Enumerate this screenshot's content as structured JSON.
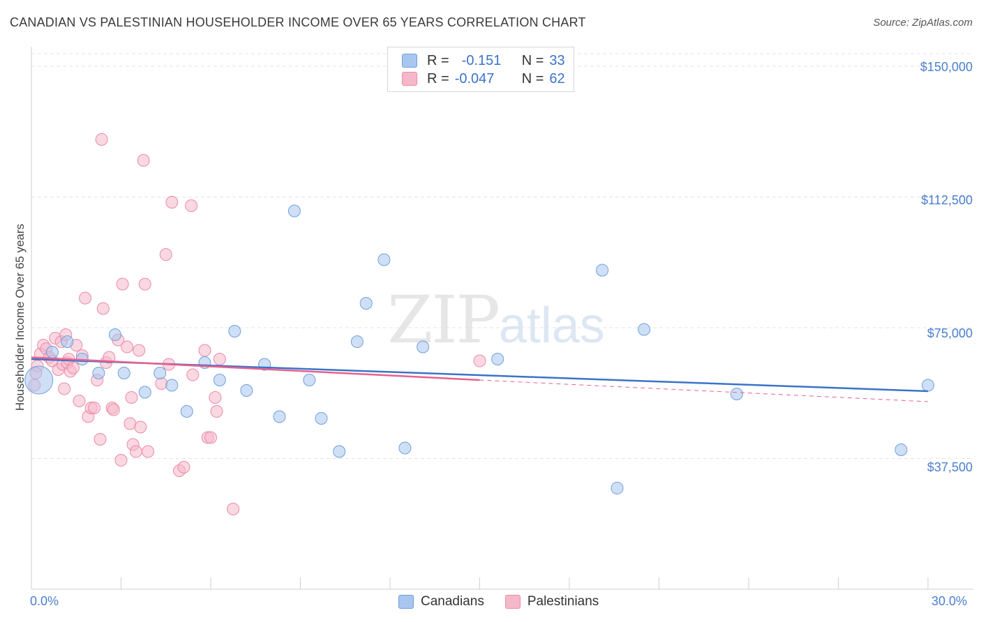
{
  "title": "CANADIAN VS PALESTINIAN HOUSEHOLDER INCOME OVER 65 YEARS CORRELATION CHART",
  "source": "Source: ZipAtlas.com",
  "watermark": {
    "zip": "ZIP",
    "atlas": "atlas"
  },
  "legend": {
    "rows": [
      {
        "r_label": "R =",
        "r_value": "-0.151",
        "n_label": "N =",
        "n_value": "33",
        "color": "#a8c6ef"
      },
      {
        "r_label": "R =",
        "r_value": "-0.047",
        "n_label": "N =",
        "n_value": "62",
        "color": "#f5b8cb"
      }
    ]
  },
  "bottom_legend": [
    "Canadians",
    "Palestinians"
  ],
  "colors": {
    "canadians_fill": "#a8c6ef",
    "canadians_stroke": "#6f9fdc",
    "canadians_line": "#3a73c8",
    "palestinians_fill": "#f5b8cb",
    "palestinians_stroke": "#ea8aa8",
    "palestinians_line": "#e8608e",
    "axis_label": "#4a7fd0",
    "grid": "#e3e3e3"
  },
  "chart_data": {
    "type": "scatter",
    "title": "CANADIAN VS PALESTINIAN HOUSEHOLDER INCOME OVER 65 YEARS CORRELATION CHART",
    "xlabel": "",
    "ylabel": "Householder Income Over 65 years",
    "xlim": [
      0,
      30
    ],
    "ylim": [
      0,
      155000
    ],
    "x_tick_labels": [
      "0.0%",
      "30.0%"
    ],
    "y_ticks": [
      37500,
      75000,
      112500,
      150000
    ],
    "y_tick_labels": [
      "$37,500",
      "$75,000",
      "$112,500",
      "$150,000"
    ],
    "grid": true,
    "legend_position": "top-center",
    "series": [
      {
        "name": "Canadians",
        "points": [
          [
            0.25,
            60000
          ],
          [
            0.7,
            68000
          ],
          [
            1.2,
            71000
          ],
          [
            1.7,
            66000
          ],
          [
            2.25,
            62000
          ],
          [
            2.8,
            73000
          ],
          [
            3.1,
            62000
          ],
          [
            3.8,
            56500
          ],
          [
            4.3,
            62000
          ],
          [
            4.7,
            58500
          ],
          [
            5.2,
            51000
          ],
          [
            5.8,
            65000
          ],
          [
            6.3,
            60000
          ],
          [
            6.8,
            74000
          ],
          [
            7.2,
            57000
          ],
          [
            7.8,
            64500
          ],
          [
            8.3,
            49500
          ],
          [
            8.8,
            108500
          ],
          [
            9.3,
            60000
          ],
          [
            9.7,
            49000
          ],
          [
            10.3,
            39500
          ],
          [
            10.9,
            71000
          ],
          [
            11.2,
            82000
          ],
          [
            11.8,
            94500
          ],
          [
            12.5,
            40500
          ],
          [
            13.1,
            69500
          ],
          [
            15.6,
            66000
          ],
          [
            19.1,
            91500
          ],
          [
            19.6,
            29000
          ],
          [
            20.5,
            74500
          ],
          [
            23.6,
            56000
          ],
          [
            29.1,
            40000
          ],
          [
            30.0,
            58500
          ]
        ],
        "trend": {
          "x": [
            0,
            30
          ],
          "y": [
            66000,
            56800
          ]
        }
      },
      {
        "name": "Palestinians",
        "points": [
          [
            0.1,
            58500
          ],
          [
            0.2,
            64000
          ],
          [
            0.3,
            67500
          ],
          [
            0.4,
            70000
          ],
          [
            0.5,
            69000
          ],
          [
            0.6,
            66500
          ],
          [
            0.7,
            65500
          ],
          [
            0.8,
            72000
          ],
          [
            0.9,
            63000
          ],
          [
            1.0,
            71000
          ],
          [
            1.05,
            64500
          ],
          [
            1.1,
            57500
          ],
          [
            1.15,
            73000
          ],
          [
            1.2,
            65000
          ],
          [
            1.25,
            66000
          ],
          [
            1.3,
            62500
          ],
          [
            1.4,
            63500
          ],
          [
            1.5,
            70000
          ],
          [
            1.6,
            54000
          ],
          [
            1.7,
            67000
          ],
          [
            1.8,
            83500
          ],
          [
            1.9,
            49500
          ],
          [
            2.0,
            52000
          ],
          [
            2.1,
            52000
          ],
          [
            2.2,
            60000
          ],
          [
            2.3,
            43000
          ],
          [
            2.35,
            129000
          ],
          [
            2.4,
            80500
          ],
          [
            2.5,
            65000
          ],
          [
            2.6,
            66500
          ],
          [
            2.7,
            52000
          ],
          [
            2.75,
            51500
          ],
          [
            2.9,
            71500
          ],
          [
            3.0,
            37000
          ],
          [
            3.05,
            87500
          ],
          [
            3.2,
            69500
          ],
          [
            3.3,
            47500
          ],
          [
            3.35,
            55000
          ],
          [
            3.4,
            41500
          ],
          [
            3.5,
            39500
          ],
          [
            3.6,
            68500
          ],
          [
            3.65,
            46500
          ],
          [
            3.75,
            123000
          ],
          [
            3.8,
            87500
          ],
          [
            3.9,
            39500
          ],
          [
            4.35,
            59000
          ],
          [
            4.5,
            96000
          ],
          [
            4.6,
            64500
          ],
          [
            4.7,
            111000
          ],
          [
            4.95,
            34000
          ],
          [
            5.1,
            35000
          ],
          [
            5.35,
            110000
          ],
          [
            5.4,
            61500
          ],
          [
            5.8,
            68500
          ],
          [
            5.9,
            43500
          ],
          [
            6.0,
            43500
          ],
          [
            6.15,
            55000
          ],
          [
            6.2,
            51000
          ],
          [
            6.3,
            66000
          ],
          [
            6.75,
            23000
          ],
          [
            15.0,
            65500
          ],
          [
            0.15,
            62000
          ]
        ],
        "trend": {
          "x": [
            0,
            15
          ],
          "y": [
            66500,
            60000
          ]
        },
        "trend_extension": {
          "x": [
            15,
            30
          ],
          "y": [
            60000,
            53800
          ]
        }
      }
    ],
    "bubble_large": {
      "series": "Canadians",
      "x": 0.25,
      "y": 60000
    }
  }
}
